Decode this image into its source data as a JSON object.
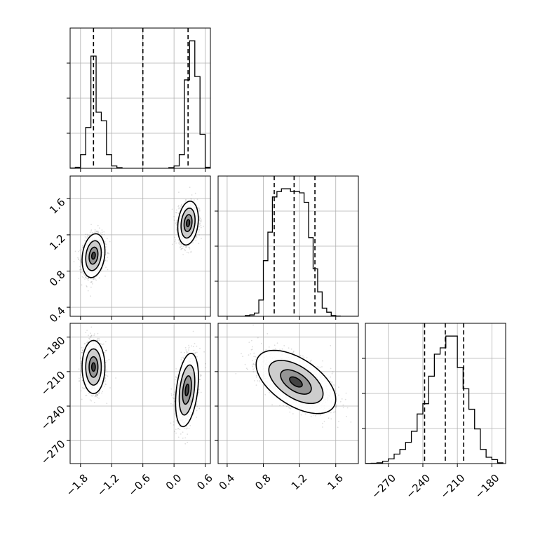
{
  "chart_data": {
    "type": "corner",
    "variables": [
      {
        "range": [
          -2.0,
          0.7
        ],
        "ticks": [
          -1.8,
          -1.2,
          -0.6,
          0.0,
          0.6
        ],
        "tick_labels": [
          "−1.8",
          "−1.2",
          "−0.6",
          "0.0",
          "0.6"
        ]
      },
      {
        "range": [
          0.3,
          1.85
        ],
        "ticks": [
          0.4,
          0.8,
          1.2,
          1.6
        ],
        "tick_labels": [
          "0.4",
          "0.8",
          "1.2",
          "1.6"
        ]
      },
      {
        "range": [
          -290,
          -168
        ],
        "ticks": [
          -270,
          -240,
          -210,
          -180
        ],
        "tick_labels": [
          "−270",
          "−240",
          "−210",
          "−180"
        ]
      }
    ],
    "quantiles": [
      [
        -1.55,
        -0.6,
        0.27
      ],
      [
        0.92,
        1.14,
        1.37
      ],
      [
        -238.5,
        -220.5,
        -204.5
      ]
    ],
    "histograms": [
      {
        "edges": [
          -2.0,
          -1.9,
          -1.8,
          -1.7,
          -1.6,
          -1.5,
          -1.4,
          -1.3,
          -1.2,
          -1.1,
          -1.0,
          -0.9,
          -0.8,
          -0.7,
          -0.6,
          -0.5,
          -0.4,
          -0.3,
          -0.2,
          -0.1,
          0.0,
          0.1,
          0.2,
          0.3,
          0.4,
          0.5,
          0.6,
          0.7
        ],
        "counts": [
          1,
          3,
          40,
          120,
          330,
          165,
          140,
          40,
          7,
          2,
          0,
          0,
          0,
          0,
          0,
          0,
          0,
          0,
          0,
          2,
          7,
          40,
          260,
          375,
          270,
          100,
          3
        ]
      },
      {
        "edges": [
          0.3,
          0.35,
          0.4,
          0.45,
          0.5,
          0.55,
          0.6,
          0.65,
          0.7,
          0.75,
          0.8,
          0.85,
          0.9,
          0.95,
          1.0,
          1.05,
          1.1,
          1.15,
          1.2,
          1.25,
          1.3,
          1.35,
          1.4,
          1.45,
          1.5,
          1.55,
          1.6,
          1.65,
          1.7,
          1.75,
          1.8,
          1.85
        ],
        "counts": [
          0,
          0,
          0,
          0,
          0,
          0,
          3,
          5,
          12,
          60,
          205,
          310,
          440,
          460,
          470,
          470,
          460,
          460,
          455,
          420,
          290,
          175,
          90,
          30,
          15,
          3,
          1,
          0,
          0,
          0,
          0
        ]
      },
      {
        "edges": [
          -290,
          -285,
          -280,
          -275,
          -270,
          -265,
          -260,
          -255,
          -250,
          -245,
          -240,
          -235,
          -230,
          -225,
          -220,
          -215,
          -210,
          -205,
          -200,
          -195,
          -190,
          -185,
          -180,
          -175,
          -170
        ],
        "counts": [
          1,
          2,
          5,
          15,
          30,
          60,
          90,
          135,
          205,
          315,
          380,
          555,
          695,
          735,
          810,
          810,
          610,
          475,
          345,
          220,
          90,
          40,
          25,
          5
        ]
      }
    ],
    "pairs": [
      {
        "xvar": 0,
        "yvar": 1,
        "clusters": [
          {
            "center": [
              -1.55,
              0.97
            ],
            "sd": [
              0.1,
              0.11
            ],
            "r": 0.2,
            "levels": [
              2.2,
              1.5,
              0.85,
              0.35
            ]
          },
          {
            "center": [
              0.27,
              1.33
            ],
            "sd": [
              0.09,
              0.11
            ],
            "r": 0.2,
            "levels": [
              2.2,
              1.5,
              0.85,
              0.35
            ]
          }
        ]
      },
      {
        "xvar": 0,
        "yvar": 2,
        "clusters": [
          {
            "center": [
              -1.55,
              -206
            ],
            "sd": [
              0.1,
              10.5
            ],
            "r": 0.0,
            "levels": [
              2.2,
              1.5,
              0.85,
              0.35
            ]
          },
          {
            "center": [
              0.25,
              -226
            ],
            "sd": [
              0.1,
              14.5
            ],
            "r": 0.35,
            "levels": [
              2.2,
              1.5,
              0.85,
              0.35
            ]
          }
        ]
      },
      {
        "xvar": 1,
        "yvar": 2,
        "clusters": [
          {
            "center": [
              1.16,
              -219
            ],
            "sd": [
              0.2,
              12.5
            ],
            "r": -0.55,
            "levels": [
              2.2,
              1.5,
              0.85,
              0.35
            ]
          }
        ]
      }
    ],
    "colors": {
      "line": "#000000",
      "grid": "#b0b0b0",
      "point": "#000000"
    },
    "grid": true,
    "title": "",
    "xlabel": "",
    "ylabel": ""
  }
}
